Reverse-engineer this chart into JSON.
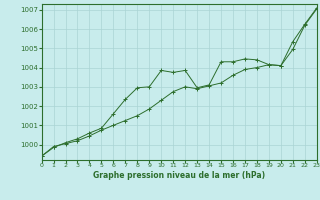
{
  "xlabel": "Graphe pression niveau de la mer (hPa)",
  "bg_color": "#c8ecec",
  "grid_color": "#aad4d4",
  "line_color": "#2d6e2d",
  "ylim": [
    999.2,
    1007.3
  ],
  "yticks": [
    1000,
    1001,
    1002,
    1003,
    1004,
    1005,
    1006,
    1007
  ],
  "xlim": [
    0,
    23
  ],
  "xticks": [
    0,
    1,
    2,
    3,
    4,
    5,
    6,
    7,
    8,
    9,
    10,
    11,
    12,
    13,
    14,
    15,
    16,
    17,
    18,
    19,
    20,
    21,
    22,
    23
  ],
  "series1_x": [
    0,
    1,
    2,
    3,
    4,
    5,
    6,
    7,
    8,
    9,
    10,
    11,
    12,
    13,
    14,
    15,
    16,
    17,
    18,
    19,
    20,
    21,
    22,
    23
  ],
  "series1_y": [
    999.4,
    999.9,
    1000.05,
    1000.2,
    1000.45,
    1000.75,
    1001.0,
    1001.25,
    1001.5,
    1001.85,
    1002.3,
    1002.75,
    1003.0,
    1002.9,
    1003.05,
    1003.2,
    1003.6,
    1003.9,
    1004.0,
    1004.15,
    1004.1,
    1004.95,
    1006.2,
    1007.05
  ],
  "series2_x": [
    0,
    1,
    2,
    3,
    4,
    5,
    6,
    7,
    8,
    9,
    10,
    11,
    12,
    13,
    14,
    15,
    16,
    17,
    18,
    19,
    20,
    21,
    22,
    23
  ],
  "series2_y": [
    999.4,
    999.85,
    1000.1,
    1000.3,
    1000.6,
    1000.85,
    1001.6,
    1002.35,
    1002.95,
    1003.0,
    1003.85,
    1003.75,
    1003.85,
    1002.95,
    1003.1,
    1004.3,
    1004.3,
    1004.45,
    1004.4,
    1004.15,
    1004.1,
    1005.35,
    1006.25,
    1007.1
  ]
}
